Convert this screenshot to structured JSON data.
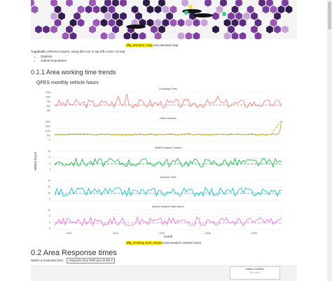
{
  "map_caption": {
    "code": "dffg_demand_map",
    "text": "Area demand map"
  },
  "toggle_text": "Toggleable reference layers, using the icon in top left corner of map:",
  "layers": [
    "Stations",
    "Jobnet boundaries"
  ],
  "section_title": "0.1.1 Area working time trends",
  "chart_title": "QFES monthly vehicle hours",
  "chart_caption": {
    "code": "dffg_working_time_trends",
    "text": "Area trends in vehicle hours"
  },
  "chart_data": {
    "type": "line",
    "ylabel": "vehicle hours",
    "xlabel": "month",
    "x_ticks": [
      "2012",
      "2014",
      "2016",
      "2018",
      "2020"
    ],
    "panels": [
      {
        "name": "Landscape Fires",
        "color": "#f8766d",
        "ticks": [
          "1250",
          "1000",
          "750",
          "500",
          "250"
        ]
      },
      {
        "name": "Other incidents",
        "color": "#b79f00",
        "ticks": [
          "2000",
          "1500",
          "1000",
          "500",
          "0"
        ]
      },
      {
        "name": "Mobile Property Crashes",
        "color": "#00ba38",
        "ticks": [
          "10",
          "8",
          "6",
          "4"
        ]
      },
      {
        "name": "Structure Fires",
        "color": "#00bfc4",
        "ticks": [
          "20",
          "15",
          "10",
          "5"
        ]
      },
      {
        "name": "System Initiated False Alarms",
        "color": "#f564e3",
        "ticks": [
          "12",
          "9",
          "6",
          "3"
        ]
      }
    ]
  },
  "section2_title": "0.2 Area Response times",
  "select": {
    "label": "Select a response time:",
    "value": "response time 90th percentile"
  },
  "legend": {
    "title": "station location",
    "sub": "50 color"
  }
}
